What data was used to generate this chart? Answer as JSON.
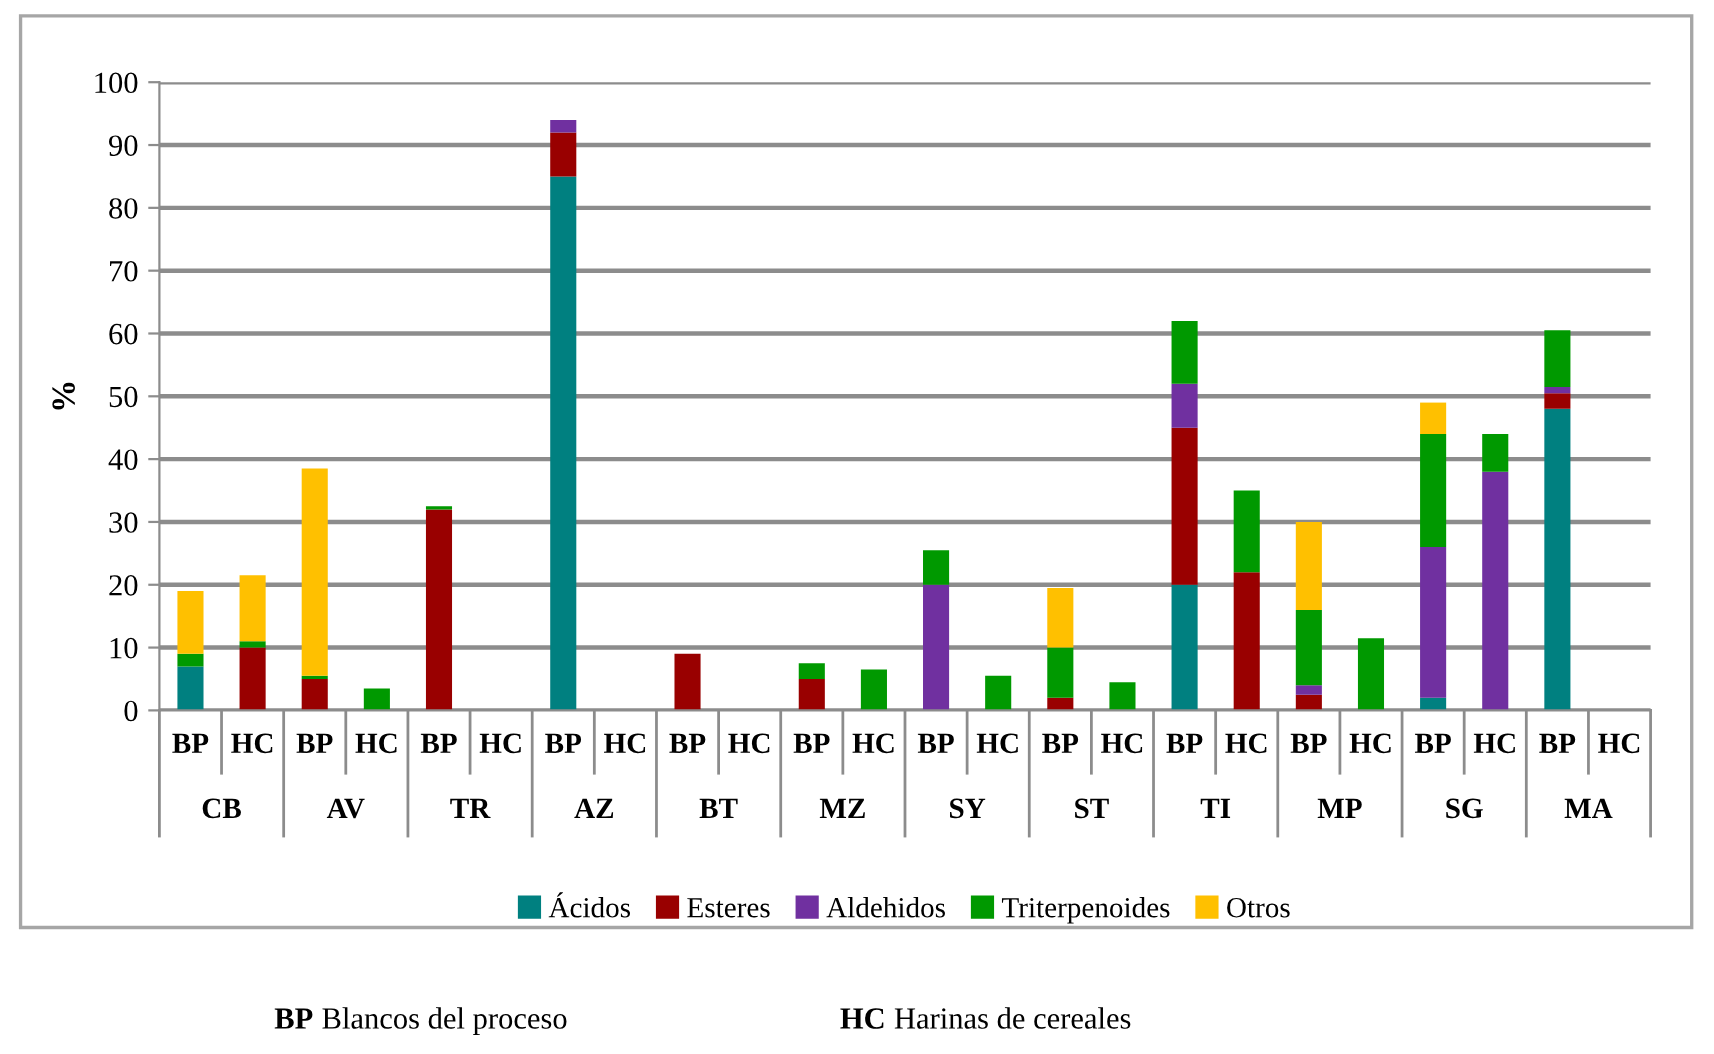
{
  "chart_data": {
    "type": "bar",
    "stacked": true,
    "ylabel": "%",
    "ylim": [
      0,
      100
    ],
    "yticks": [
      0,
      10,
      20,
      30,
      40,
      50,
      60,
      70,
      80,
      90,
      100
    ],
    "grid": "y",
    "legend": "bottom",
    "categories": [
      "BP",
      "HC",
      "BP",
      "HC",
      "BP",
      "HC",
      "BP",
      "HC",
      "BP",
      "HC",
      "BP",
      "HC",
      "BP",
      "HC",
      "BP",
      "HC",
      "BP",
      "HC",
      "BP",
      "HC",
      "BP",
      "HC",
      "BP",
      "HC"
    ],
    "series": [
      {
        "name": "Ácidos",
        "color": "#008080",
        "values": [
          7,
          0,
          0,
          0,
          0,
          0,
          85,
          0,
          0,
          0,
          0,
          0,
          0,
          0,
          0,
          0,
          20,
          0,
          0,
          0,
          2,
          0,
          48,
          0
        ]
      },
      {
        "name": "Esteres",
        "color": "#990000",
        "values": [
          0,
          10,
          5,
          0,
          32,
          0,
          7,
          0,
          9,
          0,
          5,
          0,
          0,
          0,
          2,
          0,
          25,
          22,
          2.5,
          0,
          0,
          0,
          2.5,
          0
        ]
      },
      {
        "name": "Aldehidos",
        "color": "#7030a0",
        "values": [
          0,
          0,
          0,
          0,
          0,
          0,
          2,
          0,
          0,
          0,
          0,
          0,
          20,
          0,
          0,
          0,
          7,
          0,
          1.5,
          0,
          24,
          38,
          1,
          0
        ]
      },
      {
        "name": "Triterpenoides",
        "color": "#009900",
        "values": [
          2,
          1,
          0.5,
          3.5,
          0.5,
          0,
          0,
          0,
          0,
          0,
          2.5,
          6.5,
          5.5,
          5.5,
          8,
          4.5,
          10,
          13,
          12,
          11.5,
          18,
          6,
          9,
          0
        ]
      },
      {
        "name": "Otros",
        "color": "#ffc000",
        "values": [
          10,
          10.5,
          33,
          0,
          0,
          0,
          0,
          0,
          0,
          0,
          0,
          0,
          0,
          0,
          9.5,
          0,
          0,
          0,
          14,
          0,
          5,
          0,
          0,
          0
        ]
      }
    ],
    "annotations": [
      "CB",
      "AV",
      "TR",
      "AZ",
      "BT",
      "MZ",
      "SY",
      "ST",
      "TI",
      "MP",
      "SG",
      "MA",
      "BP Blancos del proceso",
      "HC Harinas de cereales"
    ]
  }
}
